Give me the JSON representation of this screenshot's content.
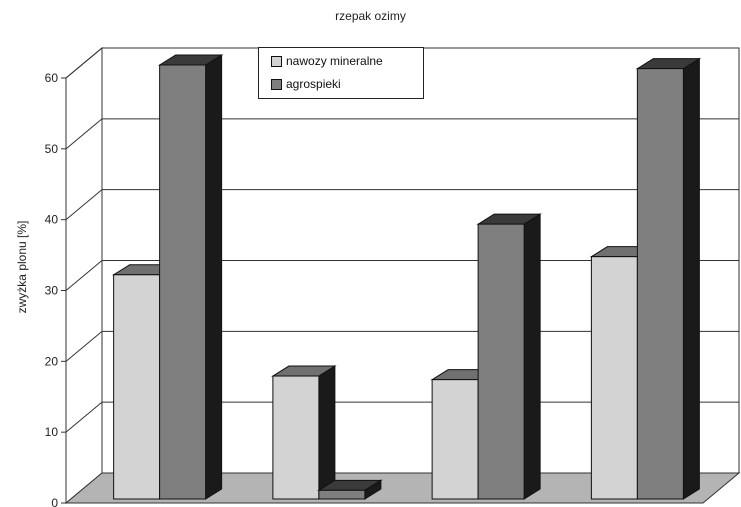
{
  "chart_data": {
    "type": "bar",
    "title": "rzepak ozimy",
    "ylabel": "zwyżka plonu [%]",
    "xlabel": "",
    "ylim": [
      0,
      60
    ],
    "yticks": [
      "0",
      "10",
      "20",
      "30",
      "40",
      "50",
      "60"
    ],
    "categories": [
      "",
      "",
      "",
      ""
    ],
    "grid": true,
    "legend_position": "top-center",
    "series": [
      {
        "name": "nawozy mineralne",
        "color": "#d3d3d3",
        "values": [
          31,
          17,
          16.5,
          33.5
        ]
      },
      {
        "name": "agrospieki",
        "color": "#7f7f7f",
        "values": [
          60,
          1.2,
          38,
          59.5
        ]
      }
    ]
  }
}
